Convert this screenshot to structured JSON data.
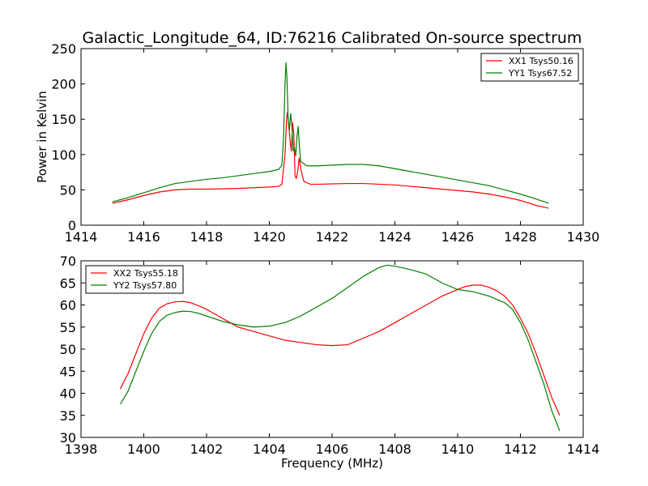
{
  "figure": {
    "title": "Galactic_Longitude_64, ID:76216 Calibrated On-source spectrum"
  },
  "chart_data": [
    {
      "type": "line",
      "title": "Galactic_Longitude_64, ID:76216 Calibrated On-source spectrum",
      "xlabel": "",
      "ylabel": "Power in Kelvin",
      "xlim": [
        1414,
        1430
      ],
      "ylim": [
        0,
        250
      ],
      "xticks": [
        1414,
        1416,
        1418,
        1420,
        1422,
        1424,
        1426,
        1428,
        1430
      ],
      "yticks": [
        0,
        50,
        100,
        150,
        200,
        250
      ],
      "grid": false,
      "legend_position": "top-right",
      "series": [
        {
          "name": "XX1 Tsys50.16",
          "color": "#ff0000",
          "points": [
            [
              1415.0,
              31
            ],
            [
              1415.5,
              36
            ],
            [
              1416.0,
              42
            ],
            [
              1416.5,
              47
            ],
            [
              1417.0,
              50
            ],
            [
              1417.5,
              51
            ],
            [
              1418.0,
              51
            ],
            [
              1418.5,
              51.5
            ],
            [
              1419.0,
              52
            ],
            [
              1419.5,
              53
            ],
            [
              1420.0,
              54
            ],
            [
              1420.3,
              55
            ],
            [
              1420.4,
              58
            ],
            [
              1420.5,
              100
            ],
            [
              1420.55,
              150
            ],
            [
              1420.58,
              160
            ],
            [
              1420.62,
              140
            ],
            [
              1420.66,
              120
            ],
            [
              1420.7,
              105
            ],
            [
              1420.74,
              145
            ],
            [
              1420.78,
              130
            ],
            [
              1420.82,
              70
            ],
            [
              1420.86,
              66
            ],
            [
              1420.9,
              75
            ],
            [
              1420.95,
              95
            ],
            [
              1421.0,
              80
            ],
            [
              1421.1,
              62
            ],
            [
              1421.3,
              58
            ],
            [
              1421.6,
              58
            ],
            [
              1422.0,
              58.5
            ],
            [
              1422.5,
              59
            ],
            [
              1423.0,
              59
            ],
            [
              1423.5,
              58
            ],
            [
              1424.0,
              57
            ],
            [
              1424.5,
              55
            ],
            [
              1425.0,
              53
            ],
            [
              1425.5,
              51
            ],
            [
              1426.0,
              49
            ],
            [
              1426.5,
              47
            ],
            [
              1427.0,
              44
            ],
            [
              1427.5,
              40
            ],
            [
              1428.0,
              35
            ],
            [
              1428.5,
              28
            ],
            [
              1428.9,
              24
            ]
          ]
        },
        {
          "name": "YY1 Tsys67.52",
          "color": "#008000",
          "points": [
            [
              1415.0,
              33
            ],
            [
              1415.5,
              39
            ],
            [
              1416.0,
              46
            ],
            [
              1416.5,
              53
            ],
            [
              1417.0,
              59
            ],
            [
              1417.5,
              62
            ],
            [
              1418.0,
              65
            ],
            [
              1418.5,
              67
            ],
            [
              1419.0,
              70
            ],
            [
              1419.5,
              73
            ],
            [
              1420.0,
              76
            ],
            [
              1420.3,
              79
            ],
            [
              1420.4,
              85
            ],
            [
              1420.45,
              120
            ],
            [
              1420.5,
              200
            ],
            [
              1420.53,
              230
            ],
            [
              1420.56,
              210
            ],
            [
              1420.6,
              150
            ],
            [
              1420.64,
              135
            ],
            [
              1420.68,
              158
            ],
            [
              1420.72,
              140
            ],
            [
              1420.76,
              105
            ],
            [
              1420.8,
              110
            ],
            [
              1420.84,
              98
            ],
            [
              1420.88,
              125
            ],
            [
              1420.92,
              140
            ],
            [
              1420.96,
              110
            ],
            [
              1421.0,
              90
            ],
            [
              1421.2,
              84
            ],
            [
              1421.5,
              84
            ],
            [
              1422.0,
              85
            ],
            [
              1422.5,
              86
            ],
            [
              1423.0,
              86
            ],
            [
              1423.5,
              84
            ],
            [
              1424.0,
              80
            ],
            [
              1424.5,
              76
            ],
            [
              1425.0,
              72
            ],
            [
              1425.5,
              68
            ],
            [
              1426.0,
              64
            ],
            [
              1426.5,
              60
            ],
            [
              1427.0,
              56
            ],
            [
              1427.5,
              50
            ],
            [
              1428.0,
              44
            ],
            [
              1428.5,
              37
            ],
            [
              1428.9,
              31
            ]
          ]
        }
      ]
    },
    {
      "type": "line",
      "title": "",
      "xlabel": "Frequency (MHz)",
      "ylabel": "",
      "xlim": [
        1398,
        1414
      ],
      "ylim": [
        30,
        70
      ],
      "xticks": [
        1398,
        1400,
        1402,
        1404,
        1406,
        1408,
        1410,
        1412,
        1414
      ],
      "yticks": [
        30,
        35,
        40,
        45,
        50,
        55,
        60,
        65,
        70
      ],
      "grid": false,
      "legend_position": "top-left",
      "series": [
        {
          "name": "XX2 Tsys55.18",
          "color": "#ff0000",
          "points": [
            [
              1399.25,
              41
            ],
            [
              1399.5,
              44.5
            ],
            [
              1399.75,
              49
            ],
            [
              1400.0,
              53.5
            ],
            [
              1400.25,
              57
            ],
            [
              1400.5,
              59.3
            ],
            [
              1400.75,
              60.3
            ],
            [
              1401.0,
              60.7
            ],
            [
              1401.25,
              60.8
            ],
            [
              1401.5,
              60.5
            ],
            [
              1401.75,
              59.8
            ],
            [
              1402.0,
              59
            ],
            [
              1402.25,
              58
            ],
            [
              1402.5,
              57
            ],
            [
              1402.75,
              56
            ],
            [
              1403.0,
              55
            ],
            [
              1403.5,
              54
            ],
            [
              1404.0,
              53
            ],
            [
              1404.5,
              52
            ],
            [
              1405.0,
              51.5
            ],
            [
              1405.5,
              51
            ],
            [
              1406.0,
              50.8
            ],
            [
              1406.5,
              51
            ],
            [
              1407.0,
              52.5
            ],
            [
              1407.5,
              54
            ],
            [
              1408.0,
              56
            ],
            [
              1408.5,
              58
            ],
            [
              1409.0,
              60
            ],
            [
              1409.5,
              62
            ],
            [
              1410.0,
              63.5
            ],
            [
              1410.25,
              64.2
            ],
            [
              1410.5,
              64.5
            ],
            [
              1410.75,
              64.5
            ],
            [
              1411.0,
              64
            ],
            [
              1411.25,
              63.2
            ],
            [
              1411.5,
              62
            ],
            [
              1411.75,
              60
            ],
            [
              1412.0,
              57
            ],
            [
              1412.25,
              53.5
            ],
            [
              1412.5,
              49
            ],
            [
              1412.75,
              44
            ],
            [
              1413.0,
              39
            ],
            [
              1413.25,
              35
            ]
          ]
        },
        {
          "name": "YY2 Tsys57.80",
          "color": "#008000",
          "points": [
            [
              1399.25,
              37.5
            ],
            [
              1399.5,
              40.5
            ],
            [
              1399.75,
              45
            ],
            [
              1400.0,
              49.5
            ],
            [
              1400.25,
              53.5
            ],
            [
              1400.5,
              56.3
            ],
            [
              1400.75,
              57.7
            ],
            [
              1401.0,
              58.3
            ],
            [
              1401.25,
              58.6
            ],
            [
              1401.5,
              58.5
            ],
            [
              1401.75,
              58.1
            ],
            [
              1402.0,
              57.5
            ],
            [
              1402.5,
              56.3
            ],
            [
              1403.0,
              55.5
            ],
            [
              1403.5,
              55
            ],
            [
              1404.0,
              55.2
            ],
            [
              1404.5,
              56
            ],
            [
              1405.0,
              57.5
            ],
            [
              1405.5,
              59.5
            ],
            [
              1406.0,
              61.5
            ],
            [
              1406.5,
              64
            ],
            [
              1407.0,
              66.5
            ],
            [
              1407.5,
              68.5
            ],
            [
              1407.75,
              69
            ],
            [
              1408.0,
              68.8
            ],
            [
              1408.5,
              68
            ],
            [
              1409.0,
              67
            ],
            [
              1409.5,
              65
            ],
            [
              1410.0,
              63.5
            ],
            [
              1410.5,
              63
            ],
            [
              1411.0,
              62
            ],
            [
              1411.5,
              60.5
            ],
            [
              1411.75,
              59
            ],
            [
              1412.0,
              56
            ],
            [
              1412.25,
              52
            ],
            [
              1412.5,
              47
            ],
            [
              1412.75,
              42
            ],
            [
              1413.0,
              36
            ],
            [
              1413.25,
              31.5
            ]
          ]
        }
      ]
    }
  ]
}
